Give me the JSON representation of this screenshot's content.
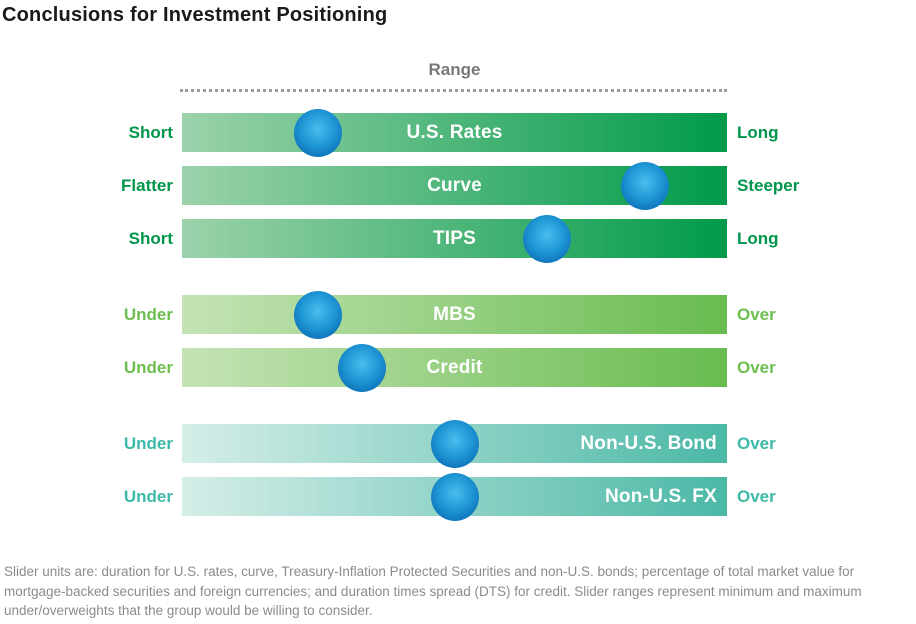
{
  "title": "Conclusions for Investment Positioning",
  "range_label": "Range",
  "chart_data": {
    "type": "slider",
    "title": "Conclusions for Investment Positioning",
    "scale_header": "Range",
    "legend_position": "none",
    "rows": [
      {
        "label": "U.S. Rates",
        "left_label": "Short",
        "right_label": "Long",
        "group": "rates-duration",
        "position": 0.25
      },
      {
        "label": "Curve",
        "left_label": "Flatter",
        "right_label": "Steeper",
        "group": "rates-duration",
        "position": 0.85
      },
      {
        "label": "TIPS",
        "left_label": "Short",
        "right_label": "Long",
        "group": "rates-duration",
        "position": 0.67
      },
      {
        "label": "MBS",
        "left_label": "Under",
        "right_label": "Over",
        "group": "spread-sectors",
        "position": 0.25
      },
      {
        "label": "Credit",
        "left_label": "Under",
        "right_label": "Over",
        "group": "spread-sectors",
        "position": 0.33
      },
      {
        "label": "Non-U.S. Bond",
        "left_label": "Under",
        "right_label": "Over",
        "group": "non-us",
        "position": 0.5
      },
      {
        "label": "Non-U.S. FX",
        "left_label": "Under",
        "right_label": "Over",
        "group": "non-us",
        "position": 0.5
      }
    ],
    "colors": {
      "rates_gradient": [
        "#9cd2ab",
        "#009a49"
      ],
      "spread_gradient": [
        "#c5e3b5",
        "#68bc4f"
      ],
      "non_us_gradient": [
        "#d5eee8",
        "#4bb8a6"
      ],
      "rates_label": "#00964b",
      "spread_label": "#6cbe4e",
      "non_us_label": "#3cb9a7",
      "knob_blue": "#1789cc",
      "range_label_gray": "#77787b"
    }
  },
  "footnote": "Slider units are: duration for U.S. rates, curve, Treasury-Inflation Protected Securities and non-U.S. bonds; percentage of total market value for mortgage-backed securities and foreign currencies; and duration times spread (DTS) for credit. Slider ranges represent minimum and maximum under/overweights that the group would be willing to consider."
}
